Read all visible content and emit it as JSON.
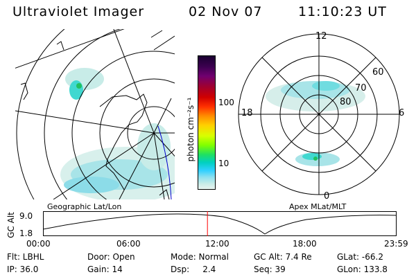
{
  "header": {
    "instrument": "Ultraviolet Imager",
    "date": "02 Nov 07",
    "time": "11:10:23 UT"
  },
  "geo_panel": {
    "label": "Geographic Lat/Lon"
  },
  "polar_panel": {
    "label": "Apex MLat/MLT",
    "mlt_labels": [
      "12",
      "18",
      "6",
      "0"
    ],
    "lat_labels": [
      "60",
      "70",
      "80"
    ]
  },
  "colorbar": {
    "unit": "photon cm⁻²s⁻¹",
    "ticks": [
      "100",
      "10"
    ],
    "colors": [
      "#1a0030",
      "#3c0050",
      "#700070",
      "#a00030",
      "#d00000",
      "#ff3000",
      "#ff8c00",
      "#ffd000",
      "#d8ff00",
      "#80ff00",
      "#20e060",
      "#00d0c0",
      "#30d0ff",
      "#8ce0f0",
      "#c8ece8",
      "#e8f4f0"
    ]
  },
  "altitude_plot": {
    "ylabel": "GC Alt",
    "yticks": [
      "9.0",
      "1.8"
    ],
    "xticks": [
      "00:00",
      "06:00",
      "12:00",
      "18:00",
      "23:59"
    ],
    "current_time_fraction": 0.465
  },
  "info": {
    "row1": [
      "Flt: LBHL",
      "Door: Open",
      "Mode: Normal",
      "GC Alt: 7.4 Re",
      "GLat: -66.2"
    ],
    "row2": [
      "IP: 36.0",
      "Gain: 14",
      "Dsp:     2.4",
      "Seq: 39",
      "GLon: 133.8"
    ]
  },
  "colors": {
    "aurora_low": "#c8ece8",
    "aurora_mid": "#40d8d0",
    "aurora_high": "#20c060",
    "marker": "#ff0000",
    "orbit": "#0000cc"
  }
}
